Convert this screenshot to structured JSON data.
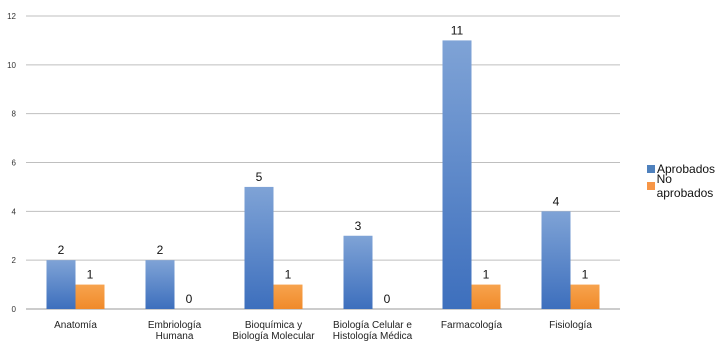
{
  "chart_data": {
    "type": "bar",
    "title": "",
    "xlabel": "",
    "ylabel": "",
    "categories": [
      [
        "Anatomía"
      ],
      [
        "Embriología",
        "Humana"
      ],
      [
        "Bioquímica y",
        "Biología Molecular"
      ],
      [
        "Biología Celular e",
        "Histología Médica"
      ],
      [
        "Farmacología"
      ],
      [
        "Fisiología"
      ]
    ],
    "series": [
      {
        "name": "Aprobados",
        "values": [
          2,
          2,
          5,
          3,
          11,
          4
        ],
        "color": "#4f81bd"
      },
      {
        "name": "No aprobados",
        "values": [
          1,
          0,
          1,
          0,
          1,
          1
        ],
        "color": "#f79646"
      }
    ],
    "ylim": [
      0,
      12
    ],
    "yticks": [
      0,
      2,
      4,
      6,
      8,
      10,
      12
    ],
    "grid": true,
    "legend_position": "right",
    "data_labels": true
  }
}
